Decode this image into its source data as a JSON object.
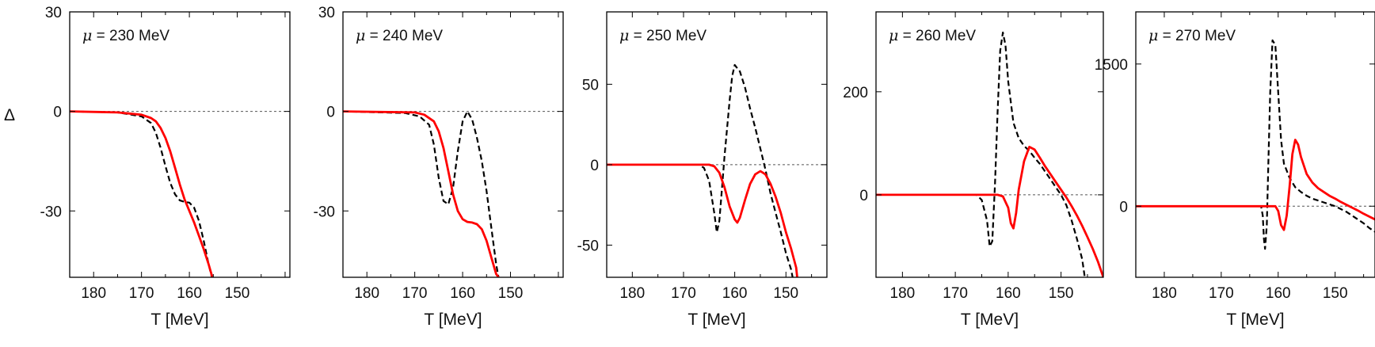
{
  "figure": {
    "ylabel": "Δ",
    "xlabel": "T [MeV]",
    "series_styles": [
      {
        "name": "black dashed",
        "color": "#000000",
        "dash": true
      },
      {
        "name": "red solid",
        "color": "#ff0000",
        "dash": false
      }
    ],
    "zero_line_color": "#555555"
  },
  "chart_data": [
    {
      "type": "line",
      "title": "μ = 230 MeV",
      "mu_symbol": "μ",
      "mu_rest": " = 230 MeV",
      "xlabel": "T [MeV]",
      "ylabel": "Δ",
      "xlim": [
        185,
        139
      ],
      "ylim": [
        -50,
        30
      ],
      "xticks": [
        180,
        170,
        160,
        150
      ],
      "xtick_labels": [
        "180",
        "170",
        "160",
        "150"
      ],
      "yticks": [
        30,
        0,
        -30
      ],
      "ytick_labels": [
        "30",
        "0",
        "-30"
      ],
      "series": [
        {
          "name": "black dashed",
          "x": [
            185,
            175,
            170,
            168,
            167,
            166,
            165,
            164,
            163,
            162,
            161,
            160,
            159,
            158,
            157,
            156,
            155.3
          ],
          "y": [
            0,
            -0.3,
            -1.5,
            -3.5,
            -6.5,
            -11,
            -16.5,
            -21.5,
            -25,
            -26.8,
            -27.3,
            -27.5,
            -29,
            -33,
            -39,
            -46,
            -50
          ]
        },
        {
          "name": "red solid",
          "x": [
            185,
            175,
            170,
            168,
            167,
            166,
            165,
            164,
            163,
            162,
            161,
            160,
            159,
            158,
            157,
            156,
            155.2
          ],
          "y": [
            0,
            -0.3,
            -1,
            -2,
            -3,
            -5,
            -8,
            -12,
            -17,
            -22,
            -26.5,
            -30,
            -33.5,
            -37.5,
            -41.5,
            -46,
            -50
          ]
        }
      ]
    },
    {
      "type": "line",
      "title": "μ = 240 MeV",
      "mu_symbol": "μ",
      "mu_rest": " = 240 MeV",
      "xlabel": "T [MeV]",
      "ylabel": "Δ",
      "xlim": [
        185,
        139
      ],
      "ylim": [
        -50,
        30
      ],
      "xticks": [
        180,
        170,
        160,
        150
      ],
      "xtick_labels": [
        "180",
        "170",
        "160",
        "150"
      ],
      "yticks": [
        30,
        0,
        -30
      ],
      "ytick_labels": [
        "30",
        "0",
        "-30"
      ],
      "series": [
        {
          "name": "black dashed",
          "x": [
            185,
            172,
            169,
            167,
            166,
            165,
            164,
            163,
            162,
            161,
            160,
            159,
            158,
            157,
            156,
            155,
            154,
            153,
            152.5
          ],
          "y": [
            0,
            -0.5,
            -1.5,
            -4,
            -10,
            -20,
            -27,
            -28,
            -23,
            -12,
            -3,
            0,
            -2.5,
            -8,
            -15,
            -24,
            -35,
            -46,
            -50
          ]
        },
        {
          "name": "red solid",
          "x": [
            185,
            170,
            168,
            166,
            165,
            164,
            163,
            162,
            161,
            160,
            159,
            158,
            157,
            156,
            155,
            154,
            153,
            152.5
          ],
          "y": [
            0,
            -0.3,
            -1,
            -3,
            -6,
            -11,
            -18,
            -25,
            -30,
            -32.5,
            -33.3,
            -33.5,
            -34,
            -35.5,
            -39,
            -44,
            -49,
            -50
          ]
        }
      ]
    },
    {
      "type": "line",
      "title": "μ = 250 MeV",
      "mu_symbol": "μ",
      "mu_rest": " = 250 MeV",
      "xlabel": "T [MeV]",
      "ylabel": "Δ",
      "xlim": [
        185,
        142
      ],
      "ylim": [
        -70,
        95
      ],
      "xticks": [
        180,
        170,
        160,
        150
      ],
      "xtick_labels": [
        "180",
        "170",
        "160",
        "150"
      ],
      "yticks": [
        50,
        0,
        -50
      ],
      "ytick_labels": [
        "50",
        "0",
        "-50"
      ],
      "series": [
        {
          "name": "black dashed",
          "x": [
            185,
            167,
            166,
            165,
            164,
            163.5,
            163,
            162.5,
            162,
            161,
            160.5,
            160,
            159,
            158,
            157,
            156,
            155,
            154,
            153,
            152,
            151,
            150,
            149,
            148.7
          ],
          "y": [
            0,
            0,
            -2,
            -10,
            -30,
            -42,
            -35,
            -15,
            5,
            40,
            55,
            62,
            58,
            48,
            35,
            23,
            10,
            -3,
            -18,
            -30,
            -42,
            -55,
            -65,
            -70
          ]
        },
        {
          "name": "red solid",
          "x": [
            185,
            165,
            164,
            163,
            162,
            161,
            160,
            159.5,
            159,
            158,
            157,
            156,
            155,
            154,
            153,
            152,
            151,
            150,
            149,
            148,
            147.8
          ],
          "y": [
            0,
            0,
            -1,
            -5,
            -14,
            -26,
            -34,
            -36,
            -33,
            -22,
            -12,
            -6,
            -4,
            -6,
            -12,
            -20,
            -30,
            -42,
            -52,
            -64,
            -70
          ]
        }
      ]
    },
    {
      "type": "line",
      "title": "μ = 260 MeV",
      "mu_symbol": "μ",
      "mu_rest": " = 260 MeV",
      "xlabel": "T [MeV]",
      "ylabel": "Δ",
      "xlim": [
        185,
        142
      ],
      "ylim": [
        -160,
        355
      ],
      "xticks": [
        180,
        170,
        160,
        150
      ],
      "xtick_labels": [
        "180",
        "170",
        "160",
        "150"
      ],
      "yticks": [
        200,
        0
      ],
      "ytick_labels": [
        "200",
        "0"
      ],
      "series": [
        {
          "name": "black dashed",
          "x": [
            185,
            166,
            165,
            164,
            163.5,
            163,
            162.5,
            162,
            161.5,
            161,
            160.5,
            160,
            159,
            158,
            157,
            156,
            155,
            154,
            153,
            152,
            151,
            150,
            149,
            148,
            147,
            146,
            145.5
          ],
          "y": [
            0,
            0,
            -10,
            -50,
            -100,
            -90,
            20,
            160,
            280,
            315,
            290,
            220,
            140,
            110,
            95,
            85,
            72,
            60,
            45,
            30,
            15,
            0,
            -20,
            -50,
            -85,
            -125,
            -160
          ]
        },
        {
          "name": "red solid",
          "x": [
            185,
            162,
            161,
            160,
            159.5,
            159,
            158.5,
            158,
            157,
            156,
            155,
            154,
            153,
            152,
            151,
            150,
            149,
            148,
            147,
            146,
            145,
            144,
            143,
            142
          ],
          "y": [
            0,
            0,
            -3,
            -25,
            -55,
            -65,
            -35,
            10,
            65,
            93,
            88,
            72,
            55,
            40,
            25,
            10,
            -5,
            -22,
            -40,
            -60,
            -82,
            -105,
            -130,
            -160
          ]
        }
      ]
    },
    {
      "type": "line",
      "title": "μ = 270 MeV",
      "mu_symbol": "μ",
      "mu_rest": " = 270 MeV",
      "xlabel": "T [MeV]",
      "ylabel": "Δ",
      "xlim": [
        185,
        143
      ],
      "ylim": [
        -750,
        2050
      ],
      "xticks": [
        180,
        170,
        160,
        150
      ],
      "xtick_labels": [
        "180",
        "170",
        "160",
        "150"
      ],
      "yticks": [
        1500,
        0
      ],
      "ytick_labels": [
        "1500",
        "0"
      ],
      "series": [
        {
          "name": "black dashed",
          "x": [
            185,
            163,
            162.7,
            162.5,
            162.3,
            162,
            161.7,
            161.4,
            161,
            160.5,
            160,
            159.5,
            159,
            158,
            157,
            156,
            155,
            154,
            153,
            152,
            151,
            150,
            149,
            148,
            147,
            146,
            145,
            144,
            143
          ],
          "y": [
            0,
            0,
            -100,
            -350,
            -450,
            -200,
            500,
            1200,
            1750,
            1700,
            1200,
            700,
            450,
            300,
            200,
            150,
            110,
            80,
            60,
            40,
            20,
            0,
            -30,
            -60,
            -100,
            -140,
            -180,
            -230,
            -270
          ]
        },
        {
          "name": "red solid",
          "x": [
            185,
            160.5,
            160,
            159.5,
            159,
            158.5,
            158,
            157.5,
            157,
            156.5,
            156,
            155,
            154,
            153,
            152,
            151,
            150,
            149,
            148,
            147,
            146,
            145,
            144,
            143
          ],
          "y": [
            0,
            0,
            -50,
            -200,
            -250,
            -100,
            200,
            550,
            700,
            650,
            520,
            340,
            250,
            190,
            150,
            110,
            80,
            45,
            15,
            -15,
            -45,
            -80,
            -110,
            -140
          ]
        }
      ]
    }
  ]
}
